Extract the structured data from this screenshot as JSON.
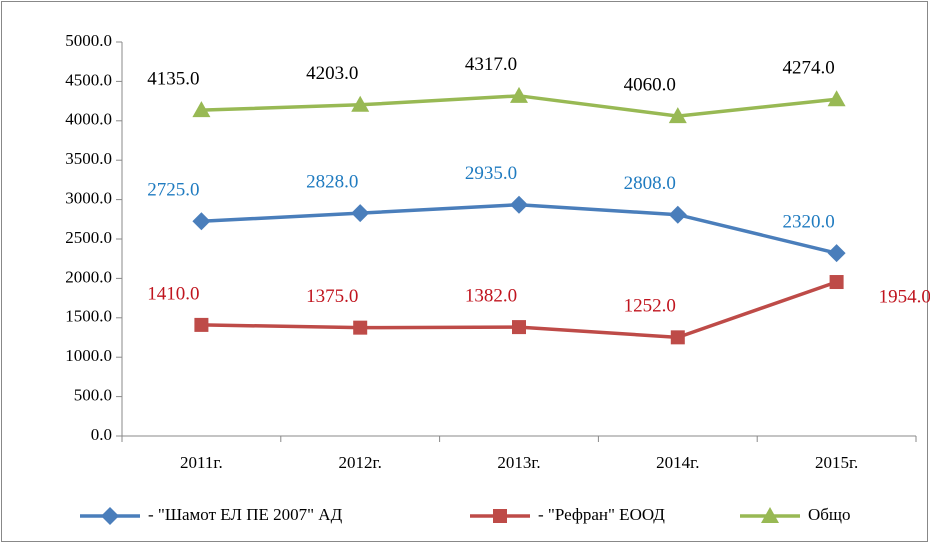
{
  "chart_data": {
    "type": "line",
    "categories": [
      "2011г.",
      "2012г.",
      "2013г.",
      "2014г.",
      "2015г."
    ],
    "series": [
      {
        "name": "- \"Шамот ЕЛ ПЕ 2007\" АД",
        "color": "#4a7ebb",
        "marker": "diamond",
        "values": [
          2725,
          2828,
          2935,
          2808,
          2320
        ],
        "value_labels": [
          "2725.0",
          "2828.0",
          "2935.0",
          "2808.0",
          "2320.0"
        ]
      },
      {
        "name": "- \"Рефран\" ЕООД",
        "color": "#be4b48",
        "marker": "square",
        "values": [
          1410,
          1375,
          1382,
          1252,
          1954
        ],
        "value_labels": [
          "1410.0",
          "1375.0",
          "1382.0",
          "1252.0",
          "1954.0"
        ]
      },
      {
        "name": "Общо",
        "color": "#98b954",
        "marker": "triangle",
        "values": [
          4135,
          4203,
          4317,
          4060,
          4274
        ],
        "value_labels": [
          "4135.0",
          "4203.0",
          "4317.0",
          "4060.0",
          "4274.0"
        ]
      }
    ],
    "ylim": [
      0,
      5000
    ],
    "yticks": [
      {
        "value": 0,
        "label": "0.0"
      },
      {
        "value": 500,
        "label": "500.0"
      },
      {
        "value": 1000,
        "label": "1000.0"
      },
      {
        "value": 1500,
        "label": "1500.0"
      },
      {
        "value": 2000,
        "label": "2000.0"
      },
      {
        "value": 2500,
        "label": "2500.0"
      },
      {
        "value": 3000,
        "label": "3000.0"
      },
      {
        "value": 3500,
        "label": "3500.0"
      },
      {
        "value": 4000,
        "label": "4000.0"
      },
      {
        "value": 4500,
        "label": "4500.0"
      },
      {
        "value": 5000,
        "label": "5000.0"
      }
    ],
    "grid": false,
    "legend": "bottom"
  }
}
